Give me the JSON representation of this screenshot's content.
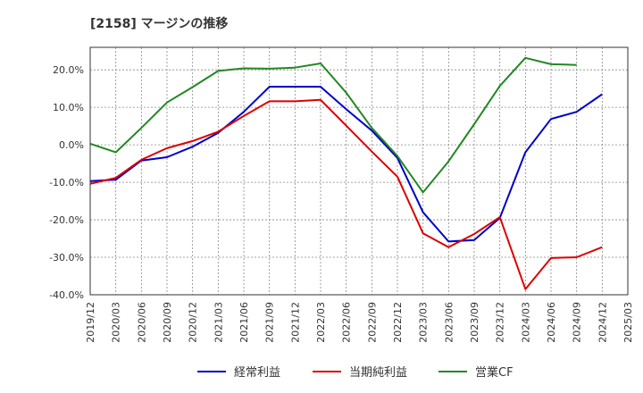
{
  "chart_data": {
    "type": "line",
    "title": "[2158]  マージンの推移",
    "xlabel": "",
    "ylabel": "",
    "categories": [
      "2019/12",
      "2020/03",
      "2020/06",
      "2020/09",
      "2020/12",
      "2021/03",
      "2021/06",
      "2021/09",
      "2021/12",
      "2022/03",
      "2022/06",
      "2022/09",
      "2022/12",
      "2023/03",
      "2023/06",
      "2023/09",
      "2023/12",
      "2024/03",
      "2024/06",
      "2024/09",
      "2024/12",
      "2025/03"
    ],
    "y_ticks": [
      "20.0%",
      "10.0%",
      "0.0%",
      "-10.0%",
      "-20.0%",
      "-30.0%",
      "-40.0%"
    ],
    "ylim": [
      -40,
      26
    ],
    "grid": true,
    "legend_position": "bottom",
    "series": [
      {
        "name": "経常利益",
        "color": "#0000cc",
        "values": [
          -9.7,
          -9.3,
          -4.2,
          -3.3,
          -0.5,
          3.2,
          8.8,
          15.5,
          15.5,
          15.5,
          9.5,
          3.8,
          -3.5,
          -18.0,
          -25.8,
          -25.4,
          -19.5,
          -2.0,
          6.9,
          8.8,
          13.5,
          null
        ]
      },
      {
        "name": "当期純利益",
        "color": "#dd0000",
        "values": [
          -10.4,
          -8.8,
          -4.0,
          -0.9,
          1.0,
          3.5,
          7.7,
          11.6,
          11.6,
          12.0,
          5.1,
          -1.8,
          -8.5,
          -23.6,
          -27.3,
          -23.8,
          -19.3,
          -38.5,
          -30.2,
          -30.0,
          -27.3,
          null
        ]
      },
      {
        "name": "営業CF",
        "color": "#228822",
        "values": [
          0.3,
          -2.0,
          4.5,
          11.3,
          15.4,
          19.7,
          20.4,
          20.3,
          20.6,
          21.7,
          13.9,
          4.5,
          -3.0,
          -12.7,
          -4.4,
          5.5,
          15.7,
          23.2,
          21.5,
          21.3,
          null,
          null
        ]
      }
    ]
  }
}
